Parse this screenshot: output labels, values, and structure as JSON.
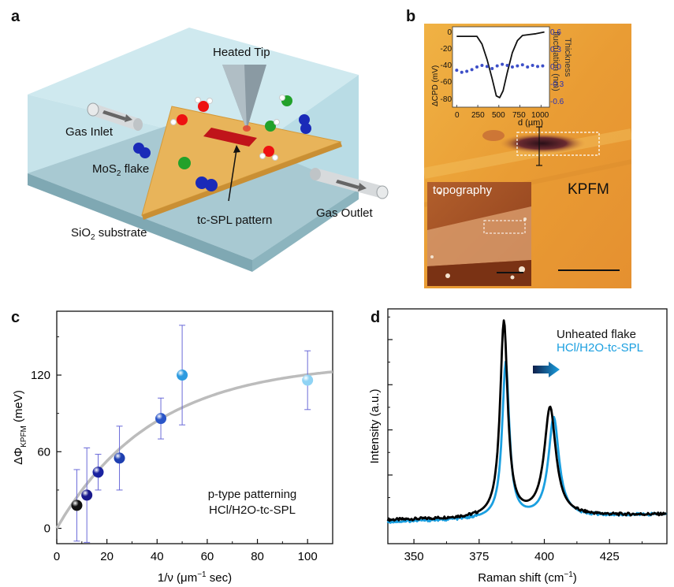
{
  "panel_a": {
    "label": "a",
    "heated_tip": "Heated Tip",
    "gas_inlet": "Gas Inlet",
    "mos2_main": "MoS",
    "mos2_sub": "2",
    "mos2_tail": " flake",
    "tc_spl_pattern": "tc-SPL pattern",
    "gas_outlet": "Gas Outlet",
    "sio2_main": "SiO",
    "sio2_sub": "2",
    "sio2_tail": " substrate"
  },
  "panel_b": {
    "label": "b",
    "kpfm": "KPFM",
    "topography": "topography",
    "inset_xlabel": "d (µm)",
    "inset_ylabel_left": "ΔCPD (mV)",
    "inset_ylabel_right_1": "Thickness",
    "inset_ylabel_right_2": "fluctuation (nm)",
    "inset_x_ticks": [
      "0",
      "250",
      "500",
      "750",
      "1000"
    ],
    "inset_y_left_ticks": [
      "0",
      "-20",
      "-40",
      "-60",
      "-80"
    ],
    "inset_y_right_ticks": [
      "0.6",
      "0.3",
      "0.0",
      "-0.3",
      "-0.6"
    ]
  },
  "panel_c": {
    "label": "c",
    "annotation_1": "p-type patterning",
    "annotation_2": "HCl/H2O-tc-SPL"
  },
  "panel_d": {
    "label": "d",
    "legend_1": "Unheated flake",
    "legend_2": "HCl/H2O-tc-SPL"
  },
  "colors": {
    "accent_blue": "#1a9fe0",
    "pattern_red": "#c0141a",
    "flake_gold": "#e8b45a",
    "kpfm_bg": "#eba23a"
  },
  "chart_data": [
    {
      "id": "c",
      "type": "scatter",
      "title": "",
      "xlabel": "1/ν (μm−1 sec)",
      "ylabel": "ΔΦKPFM (meV)",
      "xlim": [
        0,
        110
      ],
      "ylim": [
        -12,
        170
      ],
      "x_ticks": [
        0,
        20,
        40,
        60,
        80,
        100
      ],
      "y_ticks": [
        0,
        60,
        120
      ],
      "points": [
        {
          "x": 8,
          "y": 18,
          "err": 28,
          "color": "#111111"
        },
        {
          "x": 12,
          "y": 26,
          "err": 37,
          "color": "#1a1a8c"
        },
        {
          "x": 16.5,
          "y": 44,
          "err": 14,
          "color": "#1a22a0"
        },
        {
          "x": 25,
          "y": 55,
          "err": 25,
          "color": "#1e3fb0"
        },
        {
          "x": 41.5,
          "y": 86,
          "err": 16,
          "color": "#2a55c8"
        },
        {
          "x": 50,
          "y": 120,
          "err": 39,
          "color": "#2d9be0"
        },
        {
          "x": 100,
          "y": 116,
          "err": 23,
          "color": "#8fd3f4"
        }
      ],
      "fit": {
        "amplitude": 130,
        "rate": 0.026,
        "offset": 0
      }
    },
    {
      "id": "d",
      "type": "line",
      "xlabel": "Raman shift (cm−1)",
      "ylabel": "Intensity (a.u.)",
      "xlim": [
        340,
        447
      ],
      "ylim": [
        0,
        1.3
      ],
      "x_ticks": [
        350,
        375,
        400,
        425
      ],
      "series": [
        {
          "name": "Unheated flake",
          "color": "#000000",
          "baseline": 0.13,
          "slope": 0.0003,
          "peaks": [
            {
              "center": 384.5,
              "width": 1.75,
              "height": 1.08
            },
            {
              "center": 402.2,
              "width": 2.7,
              "height": 0.6
            }
          ]
        },
        {
          "name": "HCl/H2O-tc-SPL",
          "color": "#1a9fe0",
          "baseline": 0.12,
          "slope": 0.0004,
          "peaks": [
            {
              "center": 385.2,
              "width": 1.65,
              "height": 0.86
            },
            {
              "center": 403.6,
              "width": 2.45,
              "height": 0.55
            }
          ]
        }
      ]
    },
    {
      "id": "b-inset",
      "type": "line",
      "xlabel": "d (µm)",
      "ylabel": "ΔCPD (mV)",
      "xlim": [
        -50,
        1100
      ],
      "ylim": [
        -85,
        8
      ],
      "y2lim": [
        -0.75,
        0.75
      ],
      "cpd_profile": {
        "d": [
          0,
          80,
          160,
          240,
          300,
          360,
          420,
          470,
          510,
          550,
          600,
          660,
          720,
          780,
          860,
          940,
          1040
        ],
        "cpd": [
          -3,
          -3,
          -3,
          -3,
          -12,
          -30,
          -52,
          -72,
          -74,
          -66,
          -45,
          -22,
          -8,
          -2,
          -1,
          0,
          2
        ]
      },
      "thickness": {
        "d": [
          0,
          60,
          120,
          180,
          240,
          300,
          360,
          420,
          480,
          540,
          600,
          660,
          720,
          780,
          840,
          900,
          960,
          1020
        ],
        "t": [
          -0.06,
          -0.1,
          -0.08,
          -0.05,
          0.0,
          0.03,
          0.01,
          -0.03,
          0.02,
          0.05,
          0.03,
          0.0,
          0.02,
          0.04,
          0.0,
          0.03,
          0.01,
          0.02
        ]
      }
    }
  ]
}
